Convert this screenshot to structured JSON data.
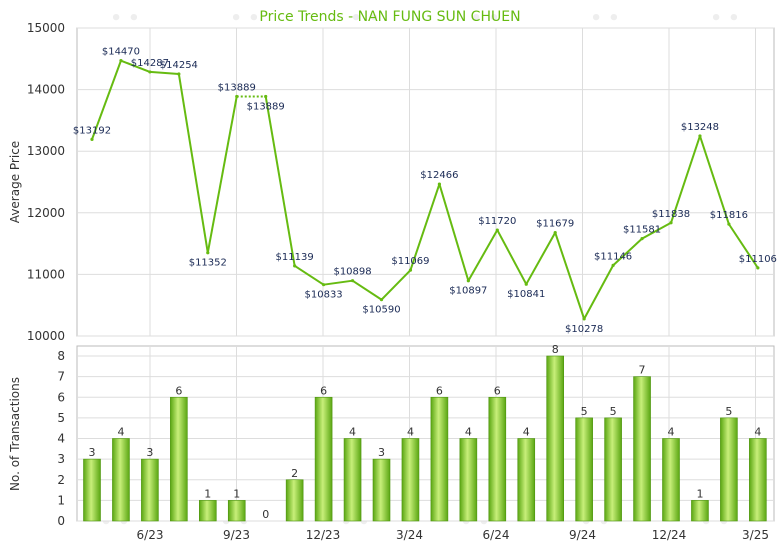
{
  "title": "Price Trends - NAN FUNG SUN CHUEN",
  "colors": {
    "line": "#66bb11",
    "bar_light": "#c8ef7a",
    "bar_dark": "#5aa612",
    "grid": "#dddddd",
    "title": "#66bb11"
  },
  "chart_data": [
    {
      "type": "line",
      "title": "Price Trends - NAN FUNG SUN CHUEN",
      "ylabel": "Average Price",
      "ylim": [
        10000,
        15000
      ],
      "yticks": [
        "10000",
        "11000",
        "12000",
        "13000",
        "14000",
        "15000"
      ],
      "xticks": [
        "6/23",
        "9/23",
        "12/23",
        "3/24",
        "6/24",
        "9/24",
        "12/24",
        "3/25"
      ],
      "grid": true,
      "points": [
        {
          "value": 13192,
          "label": "$13192",
          "gap_after": false
        },
        {
          "value": 14470,
          "label": "$14470",
          "gap_after": false
        },
        {
          "value": 14287,
          "label": "$14287",
          "gap_after": false
        },
        {
          "value": 14254,
          "label": "$14254",
          "gap_after": false
        },
        {
          "value": 11352,
          "label": "$11352",
          "gap_after": false
        },
        {
          "value": 13889,
          "label": "$13889",
          "gap_after": true
        },
        {
          "value": 13889,
          "label": "$13889",
          "gap_after": false
        },
        {
          "value": 11139,
          "label": "$11139",
          "gap_after": false
        },
        {
          "value": 10833,
          "label": "$10833",
          "gap_after": false
        },
        {
          "value": 10898,
          "label": "$10898",
          "gap_after": false
        },
        {
          "value": 10590,
          "label": "$10590",
          "gap_after": false
        },
        {
          "value": 11069,
          "label": "$11069",
          "gap_after": false
        },
        {
          "value": 12466,
          "label": "$12466",
          "gap_after": false
        },
        {
          "value": 10897,
          "label": "$10897",
          "gap_after": false
        },
        {
          "value": 11720,
          "label": "$11720",
          "gap_after": false
        },
        {
          "value": 10841,
          "label": "$10841",
          "gap_after": false
        },
        {
          "value": 11679,
          "label": "$11679",
          "gap_after": false
        },
        {
          "value": 10278,
          "label": "$10278",
          "gap_after": false
        },
        {
          "value": 11146,
          "label": "$11146",
          "gap_after": false
        },
        {
          "value": 11581,
          "label": "$11581",
          "gap_after": false
        },
        {
          "value": 11838,
          "label": "$11838",
          "gap_after": false
        },
        {
          "value": 13248,
          "label": "$13248",
          "gap_after": false
        },
        {
          "value": 11816,
          "label": "$11816",
          "gap_after": false
        },
        {
          "value": 11106,
          "label": "$11106",
          "gap_after": false
        }
      ]
    },
    {
      "type": "bar",
      "ylabel": "No. of Transactions",
      "ylim": [
        0,
        8
      ],
      "yticks": [
        "0",
        "1",
        "2",
        "3",
        "4",
        "5",
        "6",
        "7",
        "8"
      ],
      "xticks": [
        "6/23",
        "9/23",
        "12/23",
        "3/24",
        "6/24",
        "9/24",
        "12/24",
        "3/25"
      ],
      "grid": true,
      "values": [
        3,
        4,
        3,
        6,
        1,
        1,
        0,
        2,
        6,
        4,
        3,
        4,
        6,
        4,
        6,
        4,
        8,
        5,
        5,
        7,
        4,
        1,
        5,
        4
      ]
    }
  ]
}
